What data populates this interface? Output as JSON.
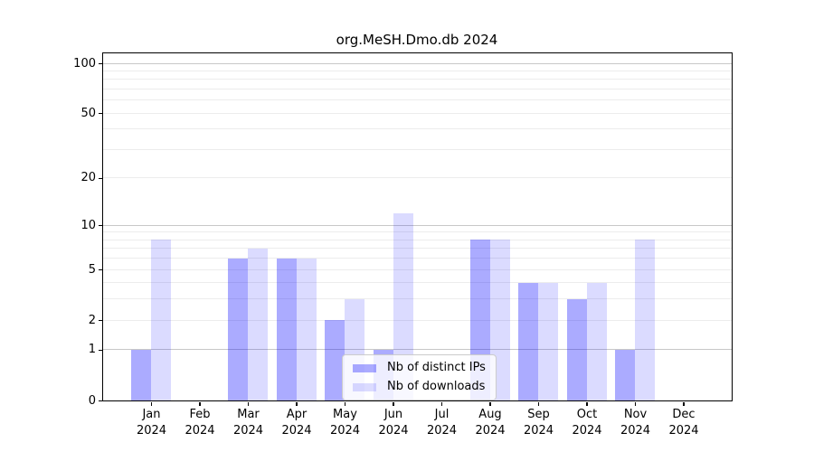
{
  "chart_data": {
    "type": "bar",
    "title": "org.MeSH.Dmo.db 2024",
    "categories": [
      "Jan 2024",
      "Feb 2024",
      "Mar 2024",
      "Apr 2024",
      "May 2024",
      "Jun 2024",
      "Jul 2024",
      "Aug 2024",
      "Sep 2024",
      "Oct 2024",
      "Nov 2024",
      "Dec 2024"
    ],
    "series": [
      {
        "name": "Nb of distinct IPs",
        "color": "rgba(0,0,255,0.33)",
        "values": [
          1,
          0,
          6,
          6,
          2,
          1,
          0,
          8,
          4,
          3,
          1,
          0
        ]
      },
      {
        "name": "Nb of downloads",
        "color": "rgba(0,0,255,0.14)",
        "values": [
          8,
          0,
          7,
          6,
          3,
          12,
          0,
          8,
          4,
          4,
          8,
          0
        ]
      }
    ],
    "yscale": "log1p",
    "ylim": [
      0,
      100
    ],
    "yticks": [
      0,
      1,
      2,
      5,
      10,
      20,
      50,
      100
    ],
    "major_gridlines": [
      1,
      10,
      100
    ],
    "minor_gridlines": [
      2,
      3,
      4,
      5,
      6,
      7,
      8,
      9,
      20,
      30,
      40,
      50,
      60,
      70,
      80,
      90
    ],
    "grid": true,
    "legend_location": "lower center"
  },
  "colors": {
    "major_grid": "#c8c8c8",
    "minor_grid": "#ececec",
    "axis": "#000000",
    "legend_border": "#cccccc"
  }
}
